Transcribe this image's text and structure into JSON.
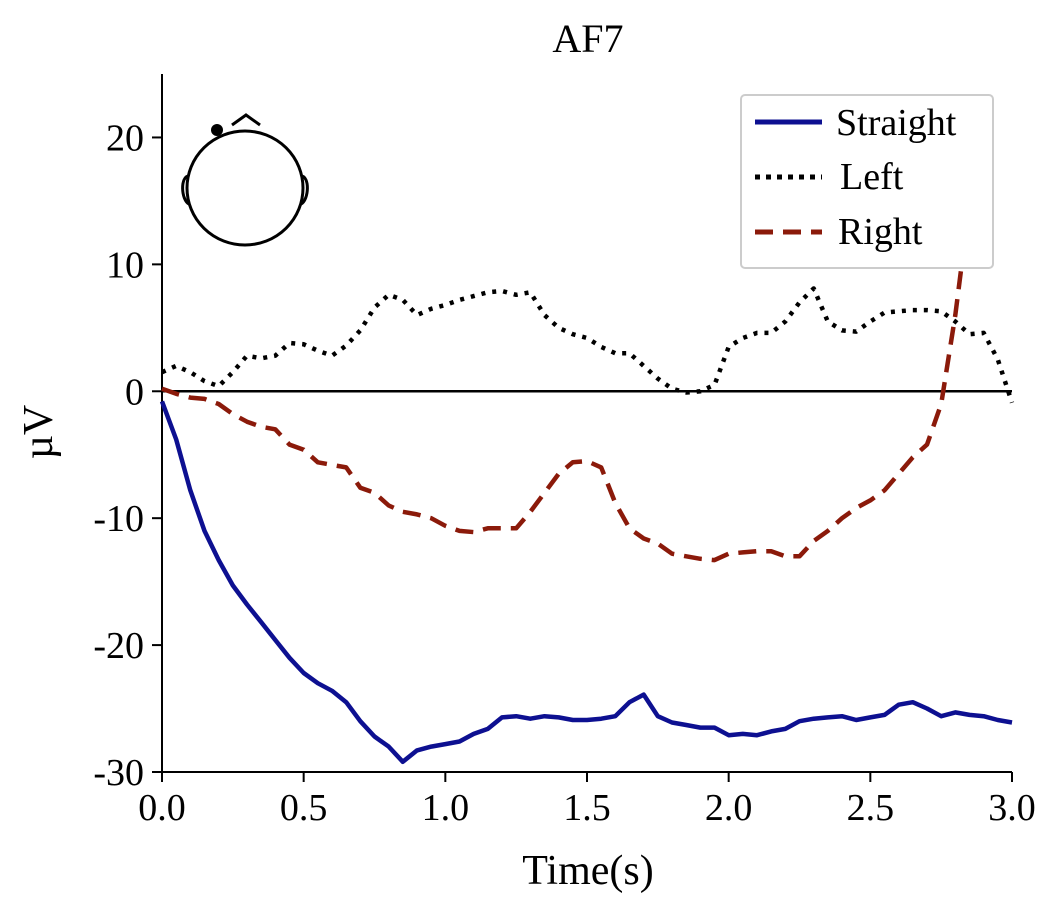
{
  "chart_data": {
    "type": "line",
    "title": "AF7",
    "xlabel": "Time(s)",
    "ylabel": "µV",
    "xlim": [
      0,
      3.0
    ],
    "ylim": [
      -30,
      25
    ],
    "xticks": [
      0.0,
      0.5,
      1.0,
      1.5,
      2.0,
      2.5,
      3.0
    ],
    "xtick_labels": [
      "0.0",
      "0.5",
      "1.0",
      "1.5",
      "2.0",
      "2.5",
      "3.0"
    ],
    "yticks": [
      -30,
      -20,
      -10,
      0,
      10,
      20
    ],
    "ytick_labels": [
      "-30",
      "-20",
      "-10",
      "0",
      "10",
      "20"
    ],
    "zero_line": true,
    "grid": false,
    "legend_position": "top-right",
    "inset": "head-map-with-electrode-AF7",
    "series": [
      {
        "name": "Straight",
        "style": "solid",
        "color": "#0d1091",
        "x": [
          0,
          0.05,
          0.1,
          0.15,
          0.2,
          0.25,
          0.3,
          0.35,
          0.4,
          0.45,
          0.5,
          0.55,
          0.6,
          0.65,
          0.7,
          0.75,
          0.8,
          0.85,
          0.9,
          0.95,
          1.0,
          1.05,
          1.1,
          1.15,
          1.2,
          1.25,
          1.3,
          1.35,
          1.4,
          1.45,
          1.5,
          1.55,
          1.6,
          1.65,
          1.7,
          1.75,
          1.8,
          1.85,
          1.9,
          1.95,
          2.0,
          2.05,
          2.1,
          2.15,
          2.2,
          2.25,
          2.3,
          2.35,
          2.4,
          2.45,
          2.5,
          2.55,
          2.6,
          2.65,
          2.7,
          2.75,
          2.8,
          2.85,
          2.9,
          2.95,
          3.0
        ],
        "y": [
          -0.8,
          -3.8,
          -7.8,
          -11.0,
          -13.3,
          -15.3,
          -16.8,
          -18.2,
          -19.6,
          -21.0,
          -22.2,
          -23.0,
          -23.6,
          -24.5,
          -26.0,
          -27.2,
          -28.0,
          -29.2,
          -28.3,
          -28.0,
          -27.8,
          -27.6,
          -27.0,
          -26.6,
          -25.7,
          -25.6,
          -25.8,
          -25.6,
          -25.7,
          -25.9,
          -25.9,
          -25.8,
          -25.6,
          -24.5,
          -23.9,
          -25.6,
          -26.1,
          -26.3,
          -26.5,
          -26.5,
          -27.1,
          -27.0,
          -27.1,
          -26.8,
          -26.6,
          -26.0,
          -25.8,
          -25.7,
          -25.6,
          -25.9,
          -25.7,
          -25.5,
          -24.7,
          -24.5,
          -25.0,
          -25.6,
          -25.3,
          -25.5,
          -25.6,
          -25.9,
          -26.1
        ]
      },
      {
        "name": "Left",
        "style": "dotted",
        "color": "#000000",
        "x": [
          0,
          0.05,
          0.1,
          0.15,
          0.2,
          0.25,
          0.3,
          0.35,
          0.4,
          0.45,
          0.5,
          0.55,
          0.6,
          0.65,
          0.7,
          0.75,
          0.8,
          0.85,
          0.9,
          0.95,
          1.0,
          1.05,
          1.1,
          1.15,
          1.2,
          1.25,
          1.3,
          1.35,
          1.4,
          1.45,
          1.5,
          1.55,
          1.6,
          1.65,
          1.7,
          1.75,
          1.8,
          1.85,
          1.9,
          1.95,
          2.0,
          2.05,
          2.1,
          2.15,
          2.2,
          2.25,
          2.3,
          2.35,
          2.4,
          2.45,
          2.5,
          2.55,
          2.6,
          2.65,
          2.7,
          2.75,
          2.8,
          2.85,
          2.9,
          2.95,
          3.0
        ],
        "y": [
          1.5,
          2.0,
          1.5,
          0.8,
          0.4,
          1.5,
          2.8,
          2.6,
          2.8,
          3.8,
          3.7,
          3.2,
          2.8,
          3.6,
          4.8,
          6.6,
          7.6,
          7.2,
          6.0,
          6.5,
          6.8,
          7.2,
          7.5,
          7.8,
          7.9,
          7.6,
          7.8,
          6.0,
          5.0,
          4.5,
          4.2,
          3.5,
          3.0,
          3.0,
          2.0,
          1.0,
          0.2,
          -0.1,
          0.0,
          0.5,
          3.5,
          4.2,
          4.6,
          4.6,
          5.5,
          7.0,
          8.1,
          5.5,
          4.8,
          4.7,
          5.5,
          6.2,
          6.3,
          6.4,
          6.4,
          6.3,
          5.5,
          4.5,
          4.6,
          2.5,
          -0.9
        ]
      },
      {
        "name": "Right",
        "style": "dashed",
        "color": "#8b1a0a",
        "x": [
          0,
          0.05,
          0.1,
          0.15,
          0.2,
          0.25,
          0.3,
          0.35,
          0.4,
          0.45,
          0.5,
          0.55,
          0.6,
          0.65,
          0.7,
          0.75,
          0.8,
          0.85,
          0.9,
          0.95,
          1.0,
          1.05,
          1.1,
          1.15,
          1.2,
          1.25,
          1.3,
          1.35,
          1.4,
          1.45,
          1.5,
          1.55,
          1.6,
          1.65,
          1.7,
          1.75,
          1.8,
          1.85,
          1.9,
          1.95,
          2.0,
          2.05,
          2.1,
          2.15,
          2.2,
          2.25,
          2.3,
          2.35,
          2.4,
          2.45,
          2.5,
          2.55,
          2.6,
          2.65,
          2.7,
          2.75,
          2.8,
          2.85
        ],
        "y": [
          0.2,
          -0.2,
          -0.5,
          -0.6,
          -1.0,
          -1.8,
          -2.4,
          -2.8,
          -3.0,
          -4.2,
          -4.6,
          -5.6,
          -5.8,
          -6.0,
          -7.6,
          -8.0,
          -9.0,
          -9.5,
          -9.7,
          -10.0,
          -10.6,
          -11.0,
          -11.1,
          -10.8,
          -10.8,
          -10.8,
          -9.5,
          -8.0,
          -6.5,
          -5.6,
          -5.5,
          -6.0,
          -8.8,
          -10.8,
          -11.6,
          -12.0,
          -12.8,
          -13.0,
          -13.2,
          -13.3,
          -12.8,
          -12.7,
          -12.6,
          -12.6,
          -13.0,
          -13.0,
          -11.8,
          -11.0,
          -10.0,
          -9.2,
          -8.6,
          -7.8,
          -6.5,
          -5.2,
          -4.2,
          -1.0,
          6.0,
          14.8
        ]
      }
    ]
  }
}
